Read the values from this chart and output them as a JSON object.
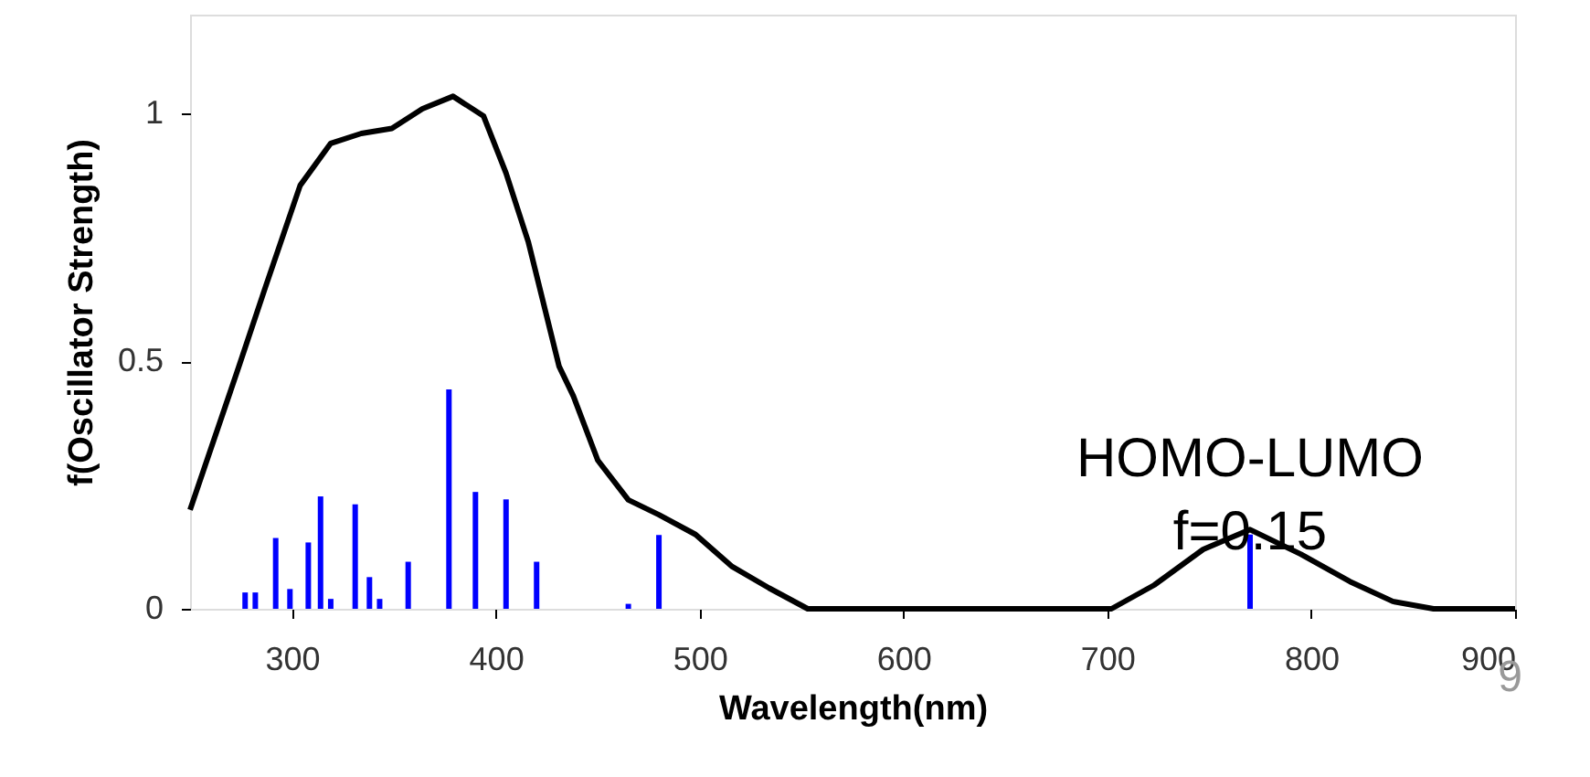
{
  "chart_data": {
    "type": "line",
    "xlabel": "Wavelength(nm)",
    "ylabel": "f(Oscillator Strength)",
    "xlim": [
      250,
      900
    ],
    "xticks": [
      300,
      400,
      500,
      600,
      700,
      800,
      900
    ],
    "ylim": [
      0,
      1.2
    ],
    "yticks": [
      0,
      0.5,
      1
    ],
    "grid": false,
    "marker": "none",
    "line_style": "solid",
    "series": [
      {
        "color": "#000000",
        "x": [
          250,
          274,
          287,
          304,
          319,
          334,
          349,
          364,
          379,
          394,
          405,
          416,
          431,
          438,
          450,
          465,
          480,
          498,
          516,
          534,
          553,
          600,
          702,
          723,
          747,
          770,
          795,
          819,
          840,
          860,
          900
        ],
        "values": [
          0.2,
          0.49,
          0.65,
          0.855,
          0.94,
          0.96,
          0.97,
          1.01,
          1.035,
          0.995,
          0.88,
          0.74,
          0.49,
          0.43,
          0.3,
          0.22,
          0.19,
          0.15,
          0.085,
          0.042,
          0.0,
          0.0,
          0.0,
          0.048,
          0.12,
          0.16,
          0.11,
          0.055,
          0.015,
          0.0,
          0.0
        ]
      },
      {
        "type": "bar",
        "color": "#0000ff",
        "x": [
          277,
          282,
          292,
          299,
          308,
          314,
          319,
          331,
          338,
          343,
          357,
          377,
          390,
          405,
          420,
          465,
          480,
          770
        ],
        "values": [
          0.033,
          0.033,
          0.143,
          0.04,
          0.134,
          0.227,
          0.02,
          0.211,
          0.064,
          0.02,
          0.095,
          0.443,
          0.236,
          0.221,
          0.095,
          0.01,
          0.149,
          0.15
        ]
      }
    ],
    "annotations": [
      {
        "text": "HOMO-LUMO\nf=0.15",
        "x": 770,
        "y": 0.15
      },
      "9"
    ]
  }
}
